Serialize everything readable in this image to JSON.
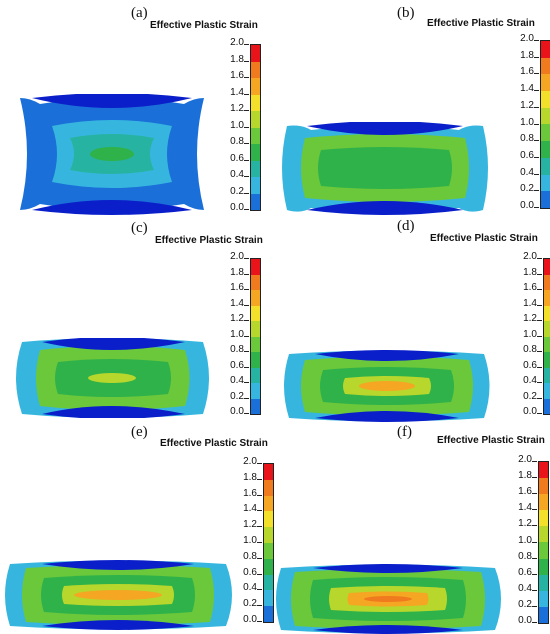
{
  "figure": {
    "panels": [
      {
        "label": "(a)",
        "title": "Effective Plastic Strain"
      },
      {
        "label": "(b)",
        "title": "Effective Plastic Strain"
      },
      {
        "label": "(c)",
        "title": "Effective Plastic Strain"
      },
      {
        "label": "(d)",
        "title": "Effective Plastic Strain"
      },
      {
        "label": "(e)",
        "title": "Effective Plastic Strain"
      },
      {
        "label": "(f)",
        "title": "Effective Plastic Strain"
      }
    ],
    "colorbar": {
      "ticks": [
        "2.0",
        "1.8",
        "1.6",
        "1.4",
        "1.2",
        "1.0",
        "0.8",
        "0.6",
        "0.4",
        "0.2",
        "0.0"
      ],
      "colors": [
        "#e8141a",
        "#f07a1e",
        "#f5a623",
        "#f2e02a",
        "#b7d72c",
        "#6bc83a",
        "#2fb24a",
        "#27b3a1",
        "#36b6df",
        "#1a6fd9",
        "#0a1fc9"
      ]
    }
  }
}
